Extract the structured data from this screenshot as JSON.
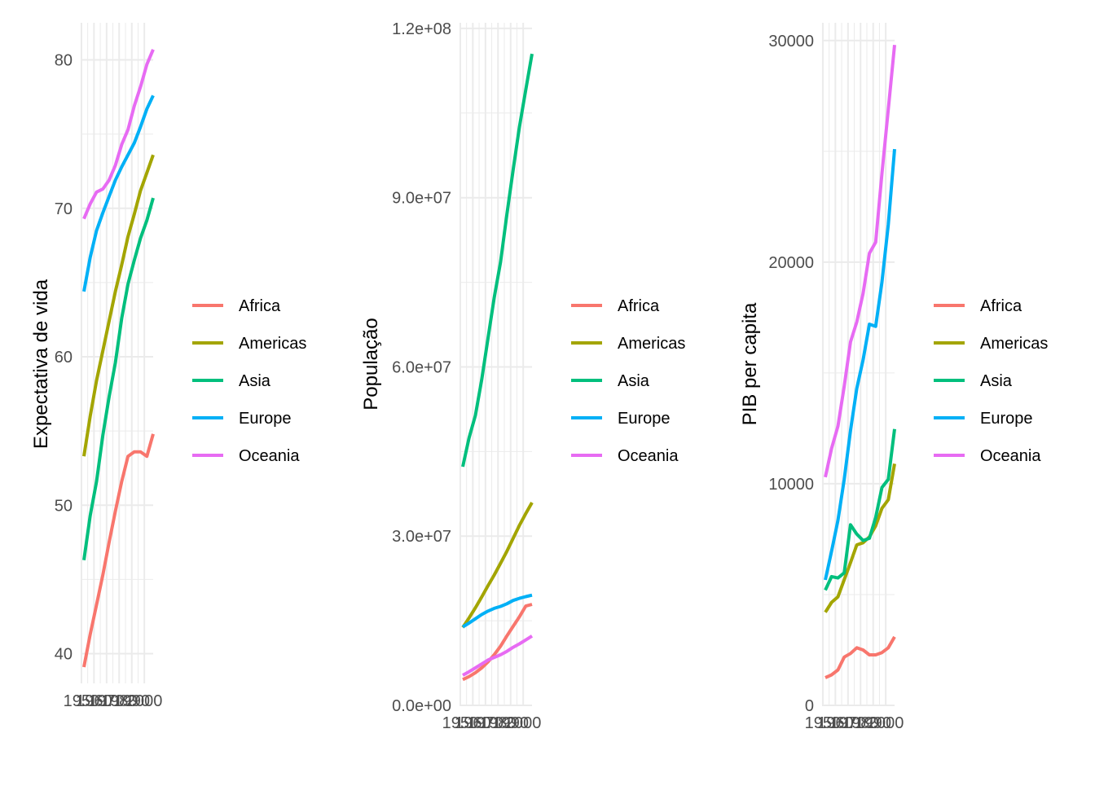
{
  "chart_data": [
    {
      "type": "line",
      "title": "",
      "xlabel": "",
      "ylabel": "Expectativa de vida",
      "xlim": [
        1952,
        2007
      ],
      "ylim": [
        38.0,
        82.5
      ],
      "xticks": [
        1950,
        1960,
        1970,
        1980,
        1990,
        2000
      ],
      "xtick_labels": [
        "1950",
        "1960",
        "1970",
        "1980",
        "1990",
        "2000"
      ],
      "yticks": [
        40,
        50,
        60,
        70,
        80
      ],
      "ytick_labels": [
        "40",
        "50",
        "60",
        "70",
        "80"
      ],
      "x": [
        1952,
        1957,
        1962,
        1967,
        1972,
        1977,
        1982,
        1987,
        1992,
        1997,
        2002,
        2007
      ],
      "series": [
        {
          "name": "Africa",
          "values": [
            39.1,
            41.3,
            43.3,
            45.3,
            47.5,
            49.6,
            51.6,
            53.3,
            53.6,
            53.6,
            53.3,
            54.8
          ]
        },
        {
          "name": "Americas",
          "values": [
            53.3,
            56.0,
            58.4,
            60.4,
            62.4,
            64.4,
            66.2,
            68.1,
            69.6,
            71.2,
            72.4,
            73.6
          ]
        },
        {
          "name": "Asia",
          "values": [
            46.3,
            49.3,
            51.6,
            54.7,
            57.3,
            59.6,
            62.6,
            64.9,
            66.5,
            68.0,
            69.2,
            70.7
          ]
        },
        {
          "name": "Europe",
          "values": [
            64.4,
            66.7,
            68.5,
            69.7,
            70.8,
            71.9,
            72.8,
            73.6,
            74.4,
            75.5,
            76.7,
            77.6
          ]
        },
        {
          "name": "Oceania",
          "values": [
            69.3,
            70.3,
            71.1,
            71.3,
            71.9,
            72.9,
            74.3,
            75.3,
            76.9,
            78.2,
            79.7,
            80.7
          ]
        }
      ]
    },
    {
      "type": "line",
      "title": "",
      "xlabel": "",
      "ylabel": "População",
      "xlim": [
        1952,
        2007
      ],
      "ylim": [
        0,
        121000000
      ],
      "xticks": [
        1950,
        1960,
        1970,
        1980,
        1990,
        2000
      ],
      "xtick_labels": [
        "1950",
        "1960",
        "1970",
        "1980",
        "1990",
        "2000"
      ],
      "yticks": [
        0,
        30000000,
        60000000,
        90000000,
        120000000
      ],
      "ytick_labels": [
        "0.0e+00",
        "3.0e+07",
        "6.0e+07",
        "9.0e+07",
        "1.2e+08"
      ],
      "x": [
        1952,
        1957,
        1962,
        1967,
        1972,
        1977,
        1982,
        1987,
        1992,
        1997,
        2002,
        2007
      ],
      "series": [
        {
          "name": "Africa",
          "values": [
            4570000,
            5090000,
            5790000,
            6640000,
            7700000,
            8980000,
            10500000,
            12300000,
            14000000,
            15700000,
            17600000,
            17900000
          ]
        },
        {
          "name": "Americas",
          "values": [
            13800000,
            15500000,
            17300000,
            19200000,
            21200000,
            23100000,
            25200000,
            27300000,
            29600000,
            31900000,
            33990000,
            35950000
          ]
        },
        {
          "name": "Asia",
          "values": [
            42300000,
            47400000,
            51400000,
            57700000,
            65000000,
            72300000,
            78600000,
            87000000,
            94900000,
            102500000,
            109100000,
            115500000
          ]
        },
        {
          "name": "Europe",
          "values": [
            13900000,
            14600000,
            15350000,
            16100000,
            16700000,
            17200000,
            17550000,
            18000000,
            18600000,
            18970000,
            19270000,
            19540000
          ]
        },
        {
          "name": "Oceania",
          "values": [
            5340000,
            5970000,
            6640000,
            7340000,
            8030000,
            8500000,
            8960000,
            9580000,
            10300000,
            10900000,
            11600000,
            12300000
          ]
        }
      ]
    },
    {
      "type": "line",
      "title": "",
      "xlabel": "",
      "ylabel": "PIB per capita",
      "xlim": [
        1952,
        2007
      ],
      "ylim": [
        0,
        30800
      ],
      "xticks": [
        1950,
        1960,
        1970,
        1980,
        1990,
        2000
      ],
      "xtick_labels": [
        "1950",
        "1960",
        "1970",
        "1980",
        "1990",
        "2000"
      ],
      "yticks": [
        0,
        10000,
        20000,
        30000
      ],
      "ytick_labels": [
        "0",
        "10000",
        "20000",
        "30000"
      ],
      "x": [
        1952,
        1957,
        1962,
        1967,
        1972,
        1977,
        1982,
        1987,
        1992,
        1997,
        2002,
        2007
      ],
      "series": [
        {
          "name": "Africa",
          "values": [
            1250,
            1380,
            1600,
            2180,
            2340,
            2600,
            2500,
            2280,
            2280,
            2380,
            2600,
            3090
          ]
        },
        {
          "name": "Americas",
          "values": [
            4200,
            4650,
            4900,
            5670,
            6440,
            7240,
            7340,
            7600,
            8100,
            8890,
            9280,
            10900
          ]
        },
        {
          "name": "Asia",
          "values": [
            5200,
            5810,
            5750,
            5980,
            8150,
            7730,
            7440,
            7540,
            8480,
            9830,
            10200,
            12470
          ]
        },
        {
          "name": "Europe",
          "values": [
            5660,
            6960,
            8350,
            10200,
            12400,
            14300,
            15600,
            17200,
            17100,
            19100,
            21700,
            25100
          ]
        },
        {
          "name": "Oceania",
          "values": [
            10300,
            11600,
            12600,
            14400,
            16400,
            17300,
            18600,
            20400,
            20900,
            24000,
            26900,
            29800
          ]
        }
      ]
    }
  ],
  "legend": {
    "items": [
      {
        "label": "Africa",
        "color": "#F8766D"
      },
      {
        "label": "Americas",
        "color": "#A3A500"
      },
      {
        "label": "Asia",
        "color": "#00BF7D"
      },
      {
        "label": "Europe",
        "color": "#00B0F6"
      },
      {
        "label": "Oceania",
        "color": "#E76BF3"
      }
    ]
  }
}
